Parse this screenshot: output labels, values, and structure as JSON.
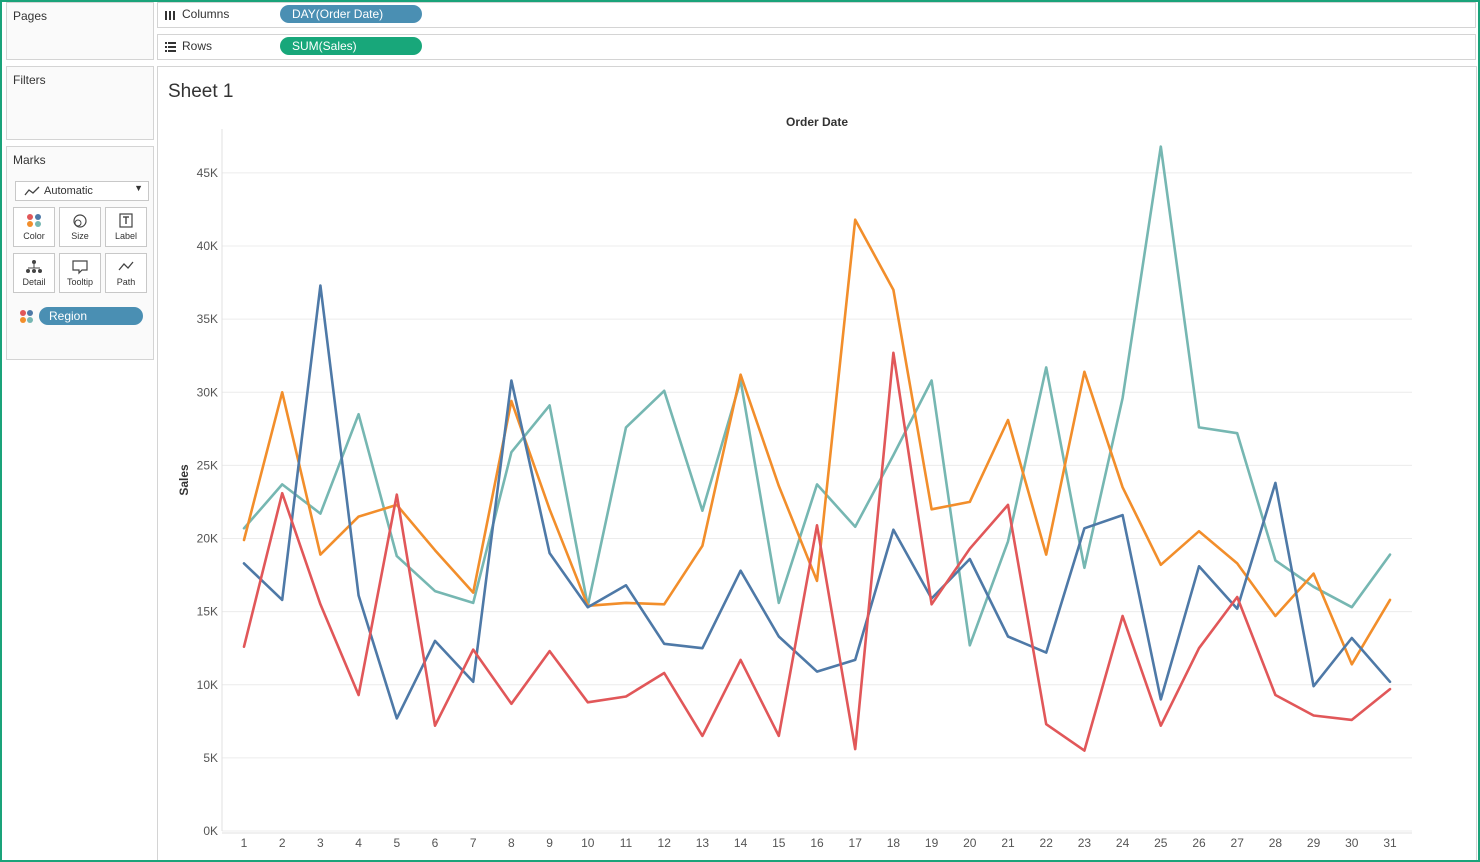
{
  "left_panel": {
    "pages_title": "Pages",
    "filters_title": "Filters",
    "marks_title": "Marks",
    "mark_type": "Automatic",
    "buttons": [
      "Color",
      "Size",
      "Label",
      "Detail",
      "Tooltip",
      "Path"
    ],
    "region_pill": "Region"
  },
  "shelves": {
    "columns_label": "Columns",
    "columns_pill": "DAY(Order Date)",
    "rows_label": "Rows",
    "rows_pill": "SUM(Sales)"
  },
  "sheet": {
    "title": "Sheet 1",
    "column_header": "Order Date"
  },
  "colors": {
    "accent_border": "#1aa37a",
    "columns_pill": "#4a8fb3",
    "rows_pill": "#18a77a"
  },
  "chart_data": {
    "type": "line",
    "xlabel": "Order Date",
    "ylabel": "Sales",
    "x": [
      1,
      2,
      3,
      4,
      5,
      6,
      7,
      8,
      9,
      10,
      11,
      12,
      13,
      14,
      15,
      16,
      17,
      18,
      19,
      20,
      21,
      22,
      23,
      24,
      25,
      26,
      27,
      28,
      29,
      30,
      31
    ],
    "ylim": [
      0,
      48000
    ],
    "yticks": [
      0,
      5000,
      10000,
      15000,
      20000,
      25000,
      30000,
      35000,
      40000,
      45000
    ],
    "ytick_labels": [
      "0K",
      "5K",
      "10K",
      "15K",
      "20K",
      "25K",
      "30K",
      "35K",
      "40K",
      "45K"
    ],
    "grid": true,
    "series": [
      {
        "color": "#76b7b2",
        "values": [
          20700,
          23700,
          21700,
          28500,
          18800,
          16400,
          15600,
          25900,
          29100,
          15400,
          27600,
          30100,
          21900,
          30800,
          15600,
          23700,
          20800,
          25700,
          30800,
          12700,
          19800,
          31700,
          18000,
          29600,
          46800,
          27600,
          27200,
          18500,
          16700,
          15300,
          18900
        ]
      },
      {
        "color": "#f28e2b",
        "values": [
          19900,
          30000,
          18900,
          21500,
          22300,
          19200,
          16300,
          29400,
          22000,
          15400,
          15600,
          15500,
          19500,
          31200,
          23600,
          17100,
          41800,
          37000,
          22000,
          22500,
          28100,
          18900,
          31400,
          23500,
          18200,
          20500,
          18300,
          14700,
          17600,
          11400,
          15800
        ]
      },
      {
        "color": "#4e79a7",
        "values": [
          18300,
          15800,
          37300,
          16100,
          7700,
          13000,
          10200,
          30800,
          19000,
          15300,
          16800,
          12800,
          12500,
          17800,
          13300,
          10900,
          11700,
          20600,
          15900,
          18600,
          13300,
          12200,
          20700,
          21600,
          9000,
          18100,
          15200,
          23800,
          9900,
          13200,
          10200
        ]
      },
      {
        "color": "#e15759",
        "values": [
          12600,
          23100,
          15500,
          9300,
          23000,
          7200,
          12400,
          8700,
          12300,
          8800,
          9200,
          10800,
          6500,
          11700,
          6500,
          20900,
          5600,
          32700,
          15500,
          19300,
          22300,
          7300,
          5500,
          14700,
          7200,
          12500,
          16000,
          9300,
          7900,
          7600,
          9700
        ]
      }
    ]
  }
}
